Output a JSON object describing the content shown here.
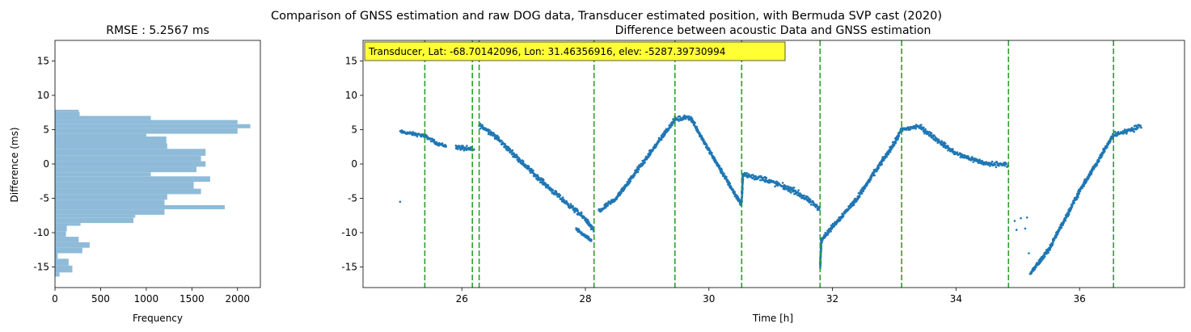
{
  "suptitle": "Comparison of GNSS estimation and raw DOG data, Transducer estimated position, with Bermuda SVP cast (2020)",
  "chart_data": [
    {
      "type": "histogram",
      "orientation": "horizontal",
      "title": "RMSE : 5.2567 ms",
      "xlabel": "Frequency",
      "ylabel": "Difference (ms)",
      "xlim": [
        0,
        2250
      ],
      "ylim": [
        -18,
        18
      ],
      "xticks": [
        0,
        500,
        1000,
        1500,
        2000
      ],
      "yticks": [
        -15,
        -10,
        -5,
        0,
        5,
        10,
        15
      ],
      "color": "#8fbbd9",
      "bins": [
        {
          "y0": -16.4,
          "y1": -15.8,
          "count": 50
        },
        {
          "y0": -15.8,
          "y1": -14.8,
          "count": 190
        },
        {
          "y0": -14.8,
          "y1": -13.8,
          "count": 150
        },
        {
          "y0": -13.8,
          "y1": -13.0,
          "count": 30
        },
        {
          "y0": -13.0,
          "y1": -12.2,
          "count": 300
        },
        {
          "y0": -12.2,
          "y1": -11.4,
          "count": 380
        },
        {
          "y0": -11.4,
          "y1": -10.6,
          "count": 260
        },
        {
          "y0": -10.6,
          "y1": -9.8,
          "count": 120
        },
        {
          "y0": -9.8,
          "y1": -9.0,
          "count": 130
        },
        {
          "y0": -9.0,
          "y1": -8.6,
          "count": 280
        },
        {
          "y0": -8.6,
          "y1": -7.8,
          "count": 860
        },
        {
          "y0": -7.8,
          "y1": -7.4,
          "count": 880
        },
        {
          "y0": -7.4,
          "y1": -6.6,
          "count": 1200
        },
        {
          "y0": -6.6,
          "y1": -6.0,
          "count": 1860
        },
        {
          "y0": -6.0,
          "y1": -5.2,
          "count": 1200
        },
        {
          "y0": -5.2,
          "y1": -4.4,
          "count": 1230
        },
        {
          "y0": -4.4,
          "y1": -3.6,
          "count": 1600
        },
        {
          "y0": -3.6,
          "y1": -2.6,
          "count": 1520
        },
        {
          "y0": -2.6,
          "y1": -1.8,
          "count": 1700
        },
        {
          "y0": -1.8,
          "y1": -1.2,
          "count": 1050
        },
        {
          "y0": -1.2,
          "y1": -0.4,
          "count": 1550
        },
        {
          "y0": -0.4,
          "y1": 0.4,
          "count": 1650
        },
        {
          "y0": 0.4,
          "y1": 1.2,
          "count": 1600
        },
        {
          "y0": 1.2,
          "y1": 2.2,
          "count": 1650
        },
        {
          "y0": 2.2,
          "y1": 3.0,
          "count": 1230
        },
        {
          "y0": 3.0,
          "y1": 4.0,
          "count": 1220
        },
        {
          "y0": 4.0,
          "y1": 4.4,
          "count": 1000
        },
        {
          "y0": 4.4,
          "y1": 5.2,
          "count": 2000
        },
        {
          "y0": 5.2,
          "y1": 5.8,
          "count": 2140
        },
        {
          "y0": 5.8,
          "y1": 6.4,
          "count": 2000
        },
        {
          "y0": 6.4,
          "y1": 7.0,
          "count": 1050
        },
        {
          "y0": 7.0,
          "y1": 7.6,
          "count": 270
        },
        {
          "y0": 7.6,
          "y1": 7.9,
          "count": 260
        }
      ]
    },
    {
      "type": "scatter",
      "title": "Difference between acoustic Data and GNSS estimation",
      "xlabel": "Time [h]",
      "ylabel": "",
      "xlim": [
        24.4,
        37.7
      ],
      "ylim": [
        -18,
        18
      ],
      "xticks": [
        26,
        28,
        30,
        32,
        34,
        36
      ],
      "yticks": [
        -15,
        -10,
        -5,
        0,
        5,
        10,
        15
      ],
      "point_color": "#1f77b4",
      "vline_color": "#2ca02c",
      "vlines": [
        25.4,
        26.17,
        26.28,
        28.14,
        29.45,
        30.53,
        31.8,
        33.12,
        34.85,
        36.55
      ],
      "annotation": "Transducer, Lat: -68.70142096, Lon: 31.46356916, elev: -5287.39730994",
      "annotation_bg": "#ffff33",
      "segments": [
        {
          "pts": [
            [
              25.0,
              4.7
            ],
            [
              25.4,
              4.1
            ],
            [
              25.6,
              3.0
            ],
            [
              25.75,
              2.6
            ]
          ],
          "spread": 0.6
        },
        {
          "pts": [
            [
              25.9,
              2.5
            ],
            [
              26.2,
              2.0
            ]
          ],
          "spread": 0.9
        },
        {
          "pts": [
            [
              26.28,
              5.7
            ],
            [
              26.5,
              4.4
            ],
            [
              27.0,
              0.0
            ],
            [
              27.5,
              -4.2
            ],
            [
              28.0,
              -8.0
            ],
            [
              28.14,
              -9.8
            ]
          ],
          "spread": 0.9
        },
        {
          "pts": [
            [
              27.85,
              -9.5
            ],
            [
              28.1,
              -11.2
            ]
          ],
          "spread": 0.6
        },
        {
          "pts": [
            [
              28.22,
              -6.9
            ],
            [
              28.5,
              -5.0
            ],
            [
              29.0,
              1.0
            ],
            [
              29.45,
              6.5
            ],
            [
              29.7,
              6.8
            ],
            [
              30.0,
              2.0
            ],
            [
              30.53,
              -6.0
            ]
          ],
          "spread": 0.9
        },
        {
          "pts": [
            [
              30.53,
              -5.5
            ],
            [
              30.55,
              -1.5
            ],
            [
              30.9,
              -2.2
            ],
            [
              31.4,
              -4.0
            ],
            [
              31.8,
              -6.5
            ]
          ],
          "spread": 1.0
        },
        {
          "pts": [
            [
              31.8,
              -15.0
            ],
            [
              31.82,
              -11.0
            ],
            [
              32.4,
              -5.0
            ],
            [
              33.0,
              3.0
            ],
            [
              33.12,
              5.0
            ],
            [
              33.4,
              5.5
            ],
            [
              34.0,
              1.5
            ],
            [
              34.5,
              0.0
            ],
            [
              34.85,
              0.0
            ]
          ],
          "spread": 0.9
        },
        {
          "pts": [
            [
              35.2,
              -16.0
            ],
            [
              35.5,
              -12.5
            ],
            [
              36.0,
              -4.0
            ],
            [
              36.55,
              4.2
            ],
            [
              37.0,
              5.5
            ]
          ],
          "spread": 0.9
        }
      ],
      "outliers": [
        [
          25.0,
          -5.5
        ],
        [
          34.95,
          -8.3
        ],
        [
          35.05,
          -7.9
        ],
        [
          35.12,
          -9.4
        ],
        [
          35.15,
          -7.8
        ],
        [
          35.18,
          -13.0
        ],
        [
          34.98,
          -9.6
        ]
      ]
    }
  ]
}
